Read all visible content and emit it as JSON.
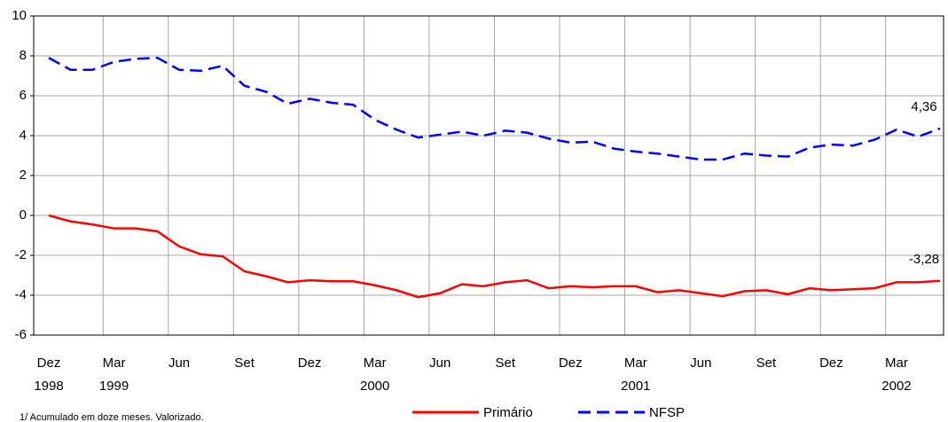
{
  "chart_data": {
    "type": "line",
    "categories": [
      "Dez",
      null,
      null,
      "Mar",
      null,
      null,
      "Jun",
      null,
      null,
      "Set",
      null,
      null,
      "Dez",
      null,
      null,
      "Mar",
      null,
      null,
      "Jun",
      null,
      null,
      "Set",
      null,
      null,
      "Dez",
      null,
      null,
      "Mar",
      null,
      null,
      "Jun",
      null,
      null,
      "Set",
      null,
      null,
      "Dez",
      null,
      null,
      "Mar",
      null,
      null
    ],
    "category_years": [
      "1998",
      null,
      null,
      "1999",
      null,
      null,
      null,
      null,
      null,
      null,
      null,
      null,
      null,
      null,
      null,
      "2000",
      null,
      null,
      null,
      null,
      null,
      null,
      null,
      null,
      null,
      null,
      null,
      "2001",
      null,
      null,
      null,
      null,
      null,
      null,
      null,
      null,
      null,
      null,
      null,
      "2002",
      null,
      null
    ],
    "series": [
      {
        "name": "Primário",
        "color": "#ff0000",
        "dash": false,
        "values": [
          0,
          -0.3,
          -0.45,
          -0.65,
          -0.65,
          -0.8,
          -1.55,
          -1.95,
          -2.05,
          -2.8,
          -3.05,
          -3.35,
          -3.25,
          -3.3,
          -3.3,
          -3.5,
          -3.75,
          -4.1,
          -3.9,
          -3.45,
          -3.55,
          -3.35,
          -3.25,
          -3.65,
          -3.55,
          -3.6,
          -3.55,
          -3.55,
          -3.85,
          -3.75,
          -3.9,
          -4.05,
          -3.8,
          -3.75,
          -3.95,
          -3.65,
          -3.75,
          -3.7,
          -3.65,
          -3.35,
          -3.35,
          -3.28
        ],
        "value_labels": [
          null,
          null,
          null,
          null,
          null,
          null,
          null,
          null,
          null,
          null,
          null,
          null,
          null,
          null,
          null,
          null,
          null,
          null,
          null,
          null,
          null,
          null,
          null,
          null,
          null,
          null,
          null,
          null,
          null,
          null,
          null,
          null,
          null,
          null,
          null,
          null,
          null,
          null,
          null,
          null,
          null,
          "-3,28"
        ]
      },
      {
        "name": "NFSP",
        "color": "#0000ff",
        "dash": true,
        "values": [
          7.9,
          7.3,
          7.3,
          7.7,
          7.85,
          7.9,
          7.3,
          7.25,
          7.5,
          6.5,
          6.2,
          5.6,
          5.85,
          5.65,
          5.55,
          4.8,
          4.3,
          3.9,
          4.05,
          4.2,
          4.0,
          4.25,
          4.15,
          3.85,
          3.65,
          3.7,
          3.35,
          3.2,
          3.1,
          2.95,
          2.8,
          2.8,
          3.1,
          3.0,
          2.95,
          3.4,
          3.55,
          3.5,
          3.8,
          4.3,
          3.95,
          4.36
        ],
        "value_labels": [
          null,
          null,
          null,
          null,
          null,
          null,
          null,
          null,
          null,
          null,
          null,
          null,
          null,
          null,
          null,
          null,
          null,
          null,
          null,
          null,
          null,
          null,
          null,
          null,
          null,
          null,
          null,
          null,
          null,
          null,
          null,
          null,
          null,
          null,
          null,
          null,
          null,
          null,
          null,
          null,
          null,
          "4,36"
        ]
      }
    ],
    "ylim": [
      -6,
      10
    ],
    "yticks": [
      -6,
      -4,
      -2,
      0,
      2,
      4,
      6,
      8,
      10
    ],
    "grid": true,
    "legend": "bottom",
    "footnote": "1/ Acumulado em doze meses.  Valorizado."
  }
}
